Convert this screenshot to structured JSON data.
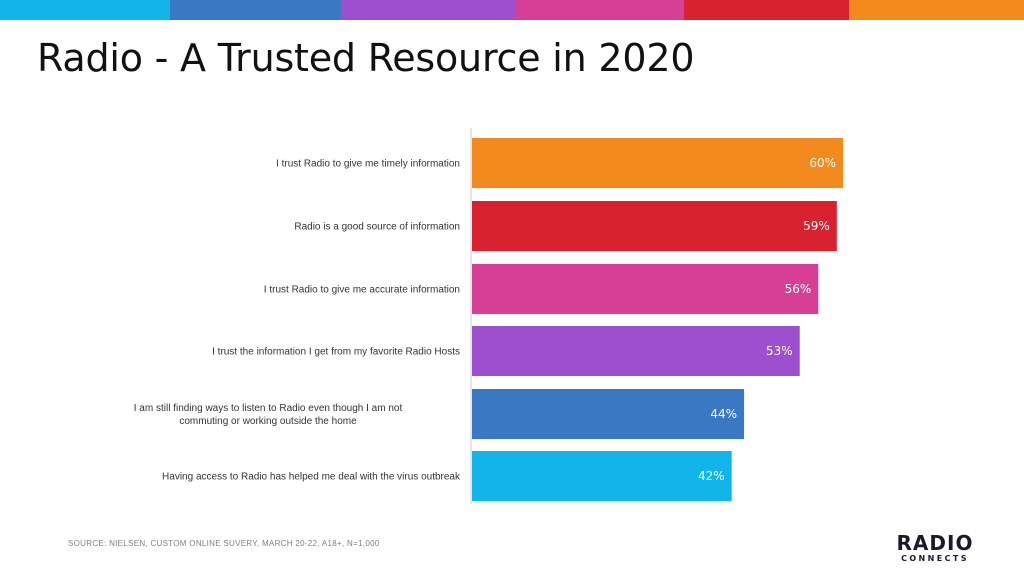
{
  "header": {
    "color_strip": [
      "#12b5ea",
      "#3b78c4",
      "#9d4fcf",
      "#d63f95",
      "#d9222f",
      "#f28a1e"
    ]
  },
  "slide": {
    "title": "Radio - A Trusted Resource in 2020",
    "source": "SOURCE: NIELSEN,  CUSTOM ONLINE SUVERY, MARCH  20-22, A18+, N=1,000"
  },
  "logo": {
    "main": "RADIO",
    "sub": "CONNECTS"
  },
  "chart_data": {
    "type": "bar",
    "orientation": "horizontal",
    "title": "",
    "xlabel": "",
    "ylabel": "",
    "xlim": [
      0,
      60
    ],
    "grid": false,
    "categories": [
      "I trust Radio to give me timely information",
      "Radio is a good source of information",
      "I trust Radio to give me accurate information",
      "I trust the information I get from my favorite Radio Hosts",
      "I am still finding ways to listen to Radio even though I am  not commuting or working outside the home",
      "Having access to Radio has helped me deal with the virus outbreak"
    ],
    "values": [
      60,
      59,
      56,
      53,
      44,
      42
    ],
    "value_labels": [
      "60%",
      "59%",
      "56%",
      "53%",
      "44%",
      "42%"
    ],
    "colors": [
      "#f28a1e",
      "#d9222f",
      "#d63f95",
      "#9d4fcf",
      "#3b78c4",
      "#12b5ea"
    ]
  }
}
